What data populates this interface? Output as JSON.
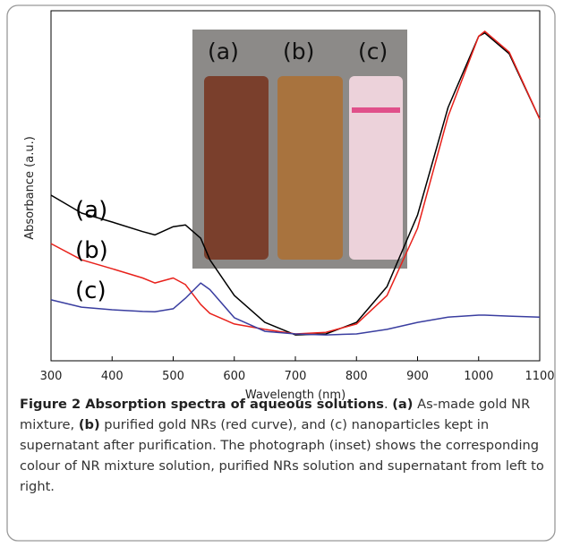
{
  "chart_data": {
    "type": "line",
    "xlabel": "Wavelength (nm)",
    "ylabel": "Absorbance (a.u.)",
    "x": [
      300,
      350,
      400,
      450,
      470,
      500,
      520,
      545,
      560,
      600,
      650,
      700,
      750,
      800,
      850,
      900,
      950,
      1000,
      1010,
      1050,
      1100
    ],
    "series": [
      {
        "name": "(a)",
        "color": "#000000",
        "values": [
          0.5,
          0.446,
          0.419,
          0.39,
          0.38,
          0.405,
          0.41,
          0.37,
          0.305,
          0.197,
          0.116,
          0.078,
          0.081,
          0.116,
          0.224,
          0.44,
          0.765,
          0.98,
          0.99,
          0.927,
          0.73
        ]
      },
      {
        "name": "(b)",
        "color": "#e8211b",
        "values": [
          0.354,
          0.305,
          0.278,
          0.25,
          0.235,
          0.25,
          0.23,
          0.17,
          0.143,
          0.111,
          0.095,
          0.081,
          0.086,
          0.111,
          0.197,
          0.4,
          0.738,
          0.98,
          0.995,
          0.932,
          0.73
        ]
      },
      {
        "name": "(c)",
        "color": "#3a3ea0",
        "values": [
          0.184,
          0.162,
          0.154,
          0.149,
          0.148,
          0.157,
          0.189,
          0.235,
          0.215,
          0.13,
          0.089,
          0.081,
          0.078,
          0.081,
          0.095,
          0.116,
          0.132,
          0.138,
          0.138,
          0.135,
          0.132
        ]
      }
    ],
    "xlim": [
      300,
      1100
    ],
    "xticks": [
      300,
      400,
      500,
      600,
      700,
      800,
      900,
      1000,
      1100
    ],
    "ylim": [
      0,
      1.057
    ],
    "inset_labels": [
      "(a)",
      "(b)",
      "(c)"
    ]
  },
  "caption": {
    "title": "Figure 2 Absorption spectra of aqueous solutions",
    "sep": ".",
    "a_label": "(a)",
    "a_text": " As-made gold NR mixture, ",
    "b_label": "(b)",
    "b_text": " purified gold NRs (red curve), and (c) nanoparticles kept in supernatant after purification. The photograph (inset) shows the corresponding colour of NR mixture solution, purified NRs solution and supernatant from left to right."
  }
}
